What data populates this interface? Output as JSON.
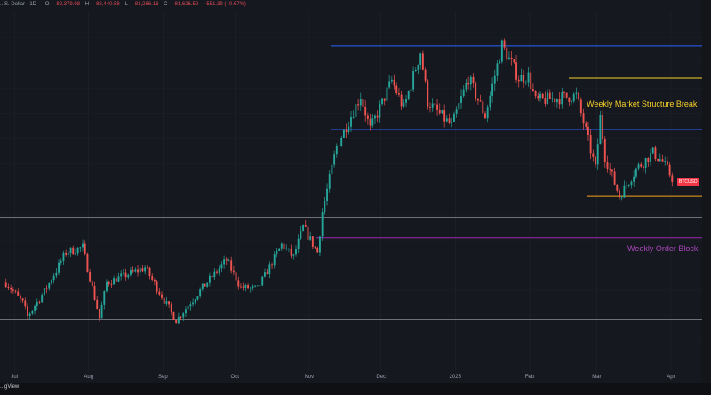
{
  "header": {
    "symbol_text": "...S. Dollar · 1D",
    "ohlc": [
      {
        "label": "O",
        "value": "82,379.98"
      },
      {
        "label": "H",
        "value": "82,440.58"
      },
      {
        "label": "L",
        "value": "81,286.16"
      },
      {
        "label": "C",
        "value": "81,626.59"
      }
    ],
    "change": "−551.39 (−0.67%)"
  },
  "annotations": {
    "weekly_msb": "Weekly Market Structure Break",
    "weekly_ob": "Weekly Order Block"
  },
  "price_tag": {
    "label": "BTCUSD"
  },
  "footer": {
    "brand": "...gView"
  },
  "colors": {
    "background": "#16181f",
    "up": "#26a69a",
    "down": "#ef5350",
    "blue_line": "#2962ff",
    "yellow_line": "#f5d12a",
    "orange_line": "#f7a21b",
    "purple_line": "#9c27b0",
    "white_line": "#c8c8c8",
    "tag_red": "#f23645"
  },
  "chart_data": {
    "type": "candlestick",
    "symbol": "BTCUSD",
    "interval": "1D",
    "x_ticks": [
      "Jul",
      "Aug",
      "Sep",
      "Oct",
      "Nov",
      "Dec",
      "2025",
      "Feb",
      "Mar",
      "Apr"
    ],
    "ylim": [
      44000,
      115000
    ],
    "horizontal_levels": [
      {
        "price": 108350,
        "color": "blue"
      },
      {
        "price": 102000,
        "color": "yellow"
      },
      {
        "price": 91800,
        "color": "blue"
      },
      {
        "price": 78600,
        "color": "orange"
      },
      {
        "price": 74400,
        "color": "white"
      },
      {
        "price": 70400,
        "color": "purple"
      },
      {
        "price": 54200,
        "color": "white"
      }
    ],
    "anchors": [
      [
        "2024-06-27",
        61500
      ],
      [
        "2024-07-04",
        57500
      ],
      [
        "2024-07-06",
        54800
      ],
      [
        "2024-07-14",
        60500
      ],
      [
        "2024-07-22",
        67500
      ],
      [
        "2024-07-29",
        68500
      ],
      [
        "2024-08-05",
        54500
      ],
      [
        "2024-08-08",
        61500
      ],
      [
        "2024-08-24",
        64500
      ],
      [
        "2024-09-06",
        54000
      ],
      [
        "2024-09-17",
        60500
      ],
      [
        "2024-09-27",
        66000
      ],
      [
        "2024-10-03",
        60500
      ],
      [
        "2024-10-10",
        60300
      ],
      [
        "2024-10-20",
        69000
      ],
      [
        "2024-10-25",
        66600
      ],
      [
        "2024-10-29",
        72500
      ],
      [
        "2024-11-04",
        67500
      ],
      [
        "2024-11-06",
        75500
      ],
      [
        "2024-11-12",
        88500
      ],
      [
        "2024-11-22",
        98500
      ],
      [
        "2024-11-26",
        91800
      ],
      [
        "2024-12-05",
        101500
      ],
      [
        "2024-12-10",
        96000
      ],
      [
        "2024-12-17",
        107200
      ],
      [
        "2024-12-20",
        97300
      ],
      [
        "2024-12-30",
        92500
      ],
      [
        "2025-01-06",
        102000
      ],
      [
        "2025-01-13",
        94500
      ],
      [
        "2025-01-20",
        108500
      ],
      [
        "2025-01-27",
        102000
      ],
      [
        "2025-01-31",
        102400
      ],
      [
        "2025-02-03",
        97500
      ],
      [
        "2025-02-20",
        98500
      ],
      [
        "2025-02-24",
        91500
      ],
      [
        "2025-02-28",
        84000
      ],
      [
        "2025-03-02",
        94200
      ],
      [
        "2025-03-04",
        86500
      ],
      [
        "2025-03-10",
        78600
      ],
      [
        "2025-03-17",
        84000
      ],
      [
        "2025-03-24",
        87200
      ],
      [
        "2025-03-28",
        85500
      ],
      [
        "2025-04-01",
        82200
      ]
    ]
  }
}
